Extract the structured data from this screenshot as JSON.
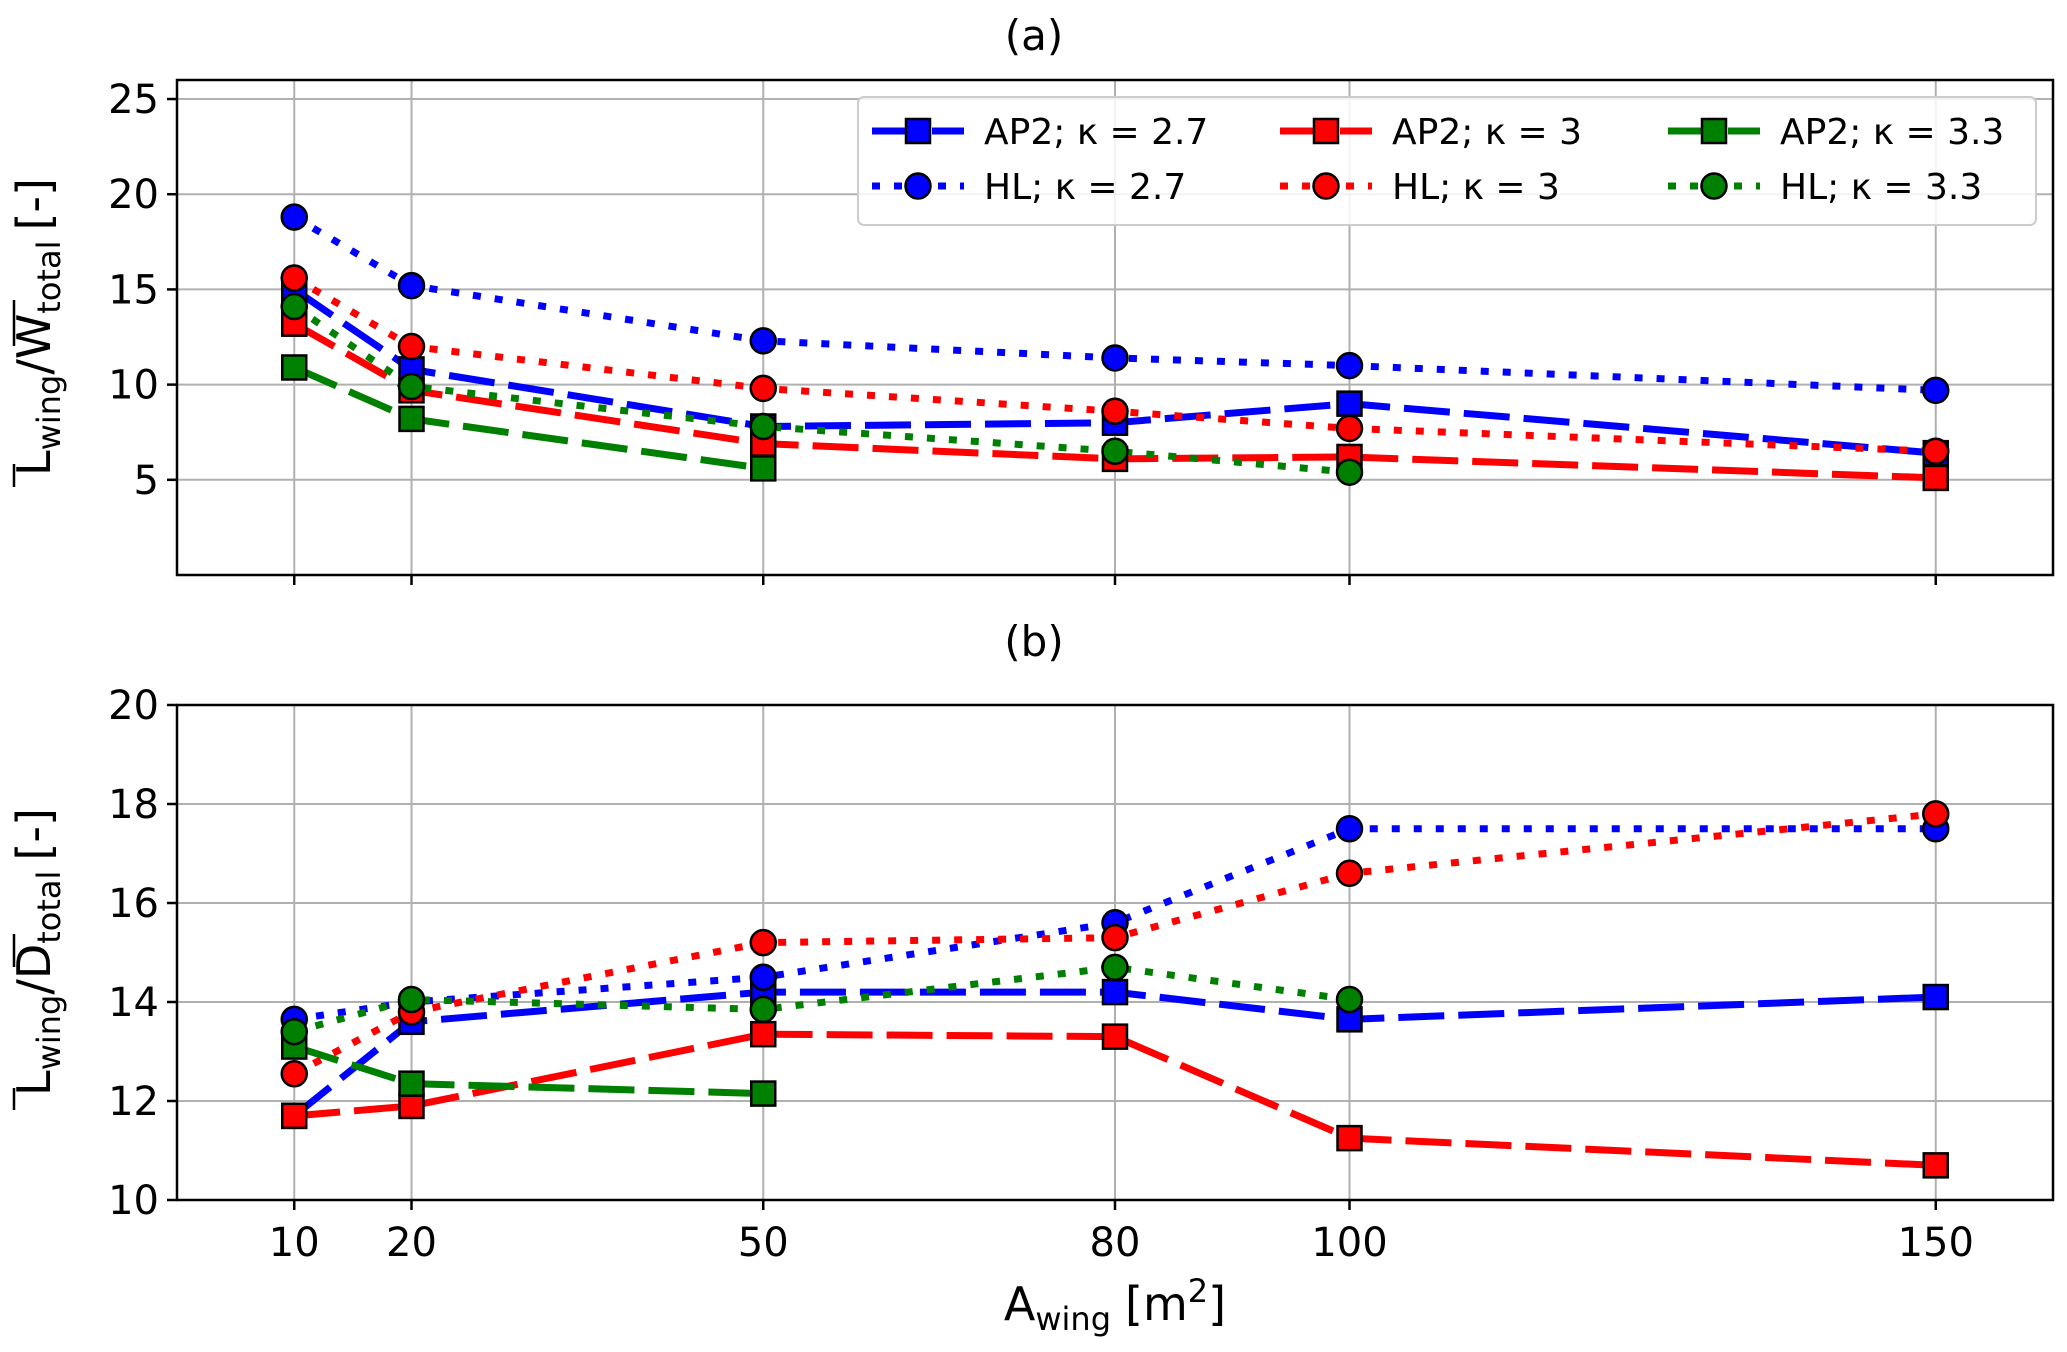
{
  "chart_data": [
    {
      "type": "line",
      "panel": "(a)",
      "title": "(a)",
      "ylabel": {
        "main": "L",
        "main_sub": "wing",
        "sep": "/",
        "denom": "W",
        "denom_sub": "total",
        "unit": "[-]"
      },
      "xlabel": "",
      "x": [
        10,
        20,
        50,
        80,
        100,
        150
      ],
      "xlim": [
        0,
        160
      ],
      "ylim": [
        0,
        26
      ],
      "xticks": [
        10,
        20,
        50,
        80,
        100,
        150
      ],
      "yticks": [
        5,
        10,
        15,
        20,
        25
      ],
      "grid": true,
      "legend_position": "top-right",
      "series": [
        {
          "name": "AP2; κ = 2.7",
          "color": "#0000ff",
          "style": "dash",
          "marker": "square",
          "x": [
            10,
            20,
            50,
            80,
            100,
            150
          ],
          "values": [
            15.0,
            10.8,
            7.8,
            8.0,
            9.0,
            6.4
          ]
        },
        {
          "name": "AP2; κ = 3",
          "color": "#ff0000",
          "style": "dash",
          "marker": "square",
          "x": [
            10,
            20,
            50,
            80,
            100,
            150
          ],
          "values": [
            13.2,
            9.7,
            6.9,
            6.1,
            6.2,
            5.1
          ]
        },
        {
          "name": "AP2; κ = 3.3",
          "color": "#008000",
          "style": "dash",
          "marker": "square",
          "x": [
            10,
            20,
            50
          ],
          "values": [
            10.9,
            8.2,
            5.6
          ]
        },
        {
          "name": "HL; κ = 2.7",
          "color": "#0000ff",
          "style": "dot",
          "marker": "circle",
          "x": [
            10,
            20,
            50,
            80,
            100,
            150
          ],
          "values": [
            18.8,
            15.2,
            12.3,
            11.4,
            11.0,
            9.7
          ]
        },
        {
          "name": "HL; κ = 3",
          "color": "#ff0000",
          "style": "dot",
          "marker": "circle",
          "x": [
            10,
            20,
            50,
            80,
            100,
            150
          ],
          "values": [
            15.6,
            12.0,
            9.8,
            8.6,
            7.7,
            6.5
          ]
        },
        {
          "name": "HL; κ = 3.3",
          "color": "#008000",
          "style": "dot",
          "marker": "circle",
          "x": [
            10,
            20,
            50,
            80,
            100
          ],
          "values": [
            14.1,
            9.9,
            7.8,
            6.5,
            5.4
          ]
        }
      ]
    },
    {
      "type": "line",
      "panel": "(b)",
      "title": "(b)",
      "ylabel": {
        "main": "L",
        "main_sub": "wing",
        "sep": "/",
        "denom": "D",
        "denom_sub": "total",
        "unit": "[-]"
      },
      "xlabel": {
        "main": "A",
        "sub": "wing",
        "unit_open": "[m",
        "sup": "2",
        "unit_close": "]"
      },
      "x": [
        10,
        20,
        50,
        80,
        100,
        150
      ],
      "xlim": [
        0,
        160
      ],
      "ylim": [
        10,
        20
      ],
      "xticks": [
        10,
        20,
        50,
        80,
        100,
        150
      ],
      "yticks": [
        10,
        12,
        14,
        16,
        18,
        20
      ],
      "grid": true,
      "series": [
        {
          "name": "AP2; κ = 2.7",
          "color": "#0000ff",
          "style": "dash",
          "marker": "square",
          "x": [
            10,
            20,
            50,
            80,
            100,
            150
          ],
          "values": [
            11.7,
            13.6,
            14.2,
            14.2,
            13.65,
            14.1
          ]
        },
        {
          "name": "AP2; κ = 3",
          "color": "#ff0000",
          "style": "dash",
          "marker": "square",
          "x": [
            10,
            20,
            50,
            80,
            100,
            150
          ],
          "values": [
            11.7,
            11.9,
            13.35,
            13.3,
            11.25,
            10.7
          ]
        },
        {
          "name": "AP2; κ = 3.3",
          "color": "#008000",
          "style": "dash",
          "marker": "square",
          "x": [
            10,
            20,
            50
          ],
          "values": [
            13.1,
            12.35,
            12.15
          ]
        },
        {
          "name": "HL; κ = 2.7",
          "color": "#0000ff",
          "style": "dot",
          "marker": "circle",
          "x": [
            10,
            20,
            50,
            80,
            100,
            150
          ],
          "values": [
            13.65,
            14.0,
            14.5,
            15.6,
            17.5,
            17.5
          ]
        },
        {
          "name": "HL; κ = 3",
          "color": "#ff0000",
          "style": "dot",
          "marker": "circle",
          "x": [
            10,
            20,
            50,
            80,
            100,
            150
          ],
          "values": [
            12.55,
            13.8,
            15.2,
            15.3,
            16.6,
            17.8
          ]
        },
        {
          "name": "HL; κ = 3.3",
          "color": "#008000",
          "style": "dot",
          "marker": "circle",
          "x": [
            10,
            20,
            50,
            80,
            100
          ],
          "values": [
            13.4,
            14.05,
            13.85,
            14.7,
            14.05
          ]
        }
      ]
    }
  ]
}
